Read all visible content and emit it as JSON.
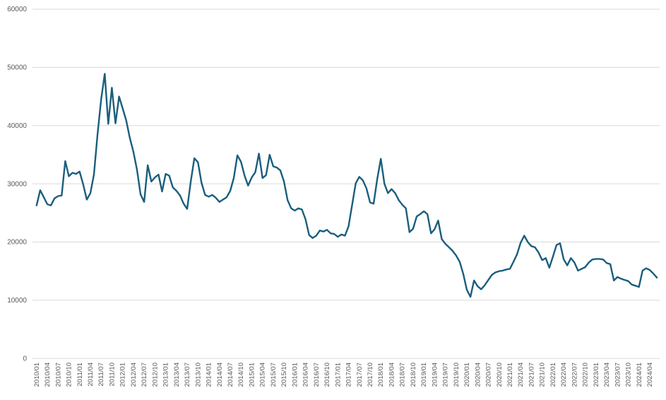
{
  "chart_data": {
    "type": "line",
    "title": "",
    "subtitle": "",
    "legend": "none",
    "grid": "horizontal",
    "x_unit": "month",
    "x_start": "2010/01",
    "x_end": "2024/06",
    "ylim": [
      0,
      60000
    ],
    "y_tick_step": 10000,
    "y_tick_labels": [
      "0",
      "10000",
      "20000",
      "30000",
      "40000",
      "50000",
      "60000"
    ],
    "x_tick_labels": [
      "2010/01",
      "2010/04",
      "2010/07",
      "2010/10",
      "2011/01",
      "2011/04",
      "2011/07",
      "2011/10",
      "2012/01",
      "2012/04",
      "2012/07",
      "2012/10",
      "2013/01",
      "2013/04",
      "2013/07",
      "2013/10",
      "2014/01",
      "2014/04",
      "2014/07",
      "2014/10",
      "2015/01",
      "2015/04",
      "2015/07",
      "2015/10",
      "2016/01",
      "2016/04",
      "2016/07",
      "2016/10",
      "2017/01",
      "2017/04",
      "2017/07",
      "2017/10",
      "2018/01",
      "2018/04",
      "2018/07",
      "2018/10",
      "2019/01",
      "2019/04",
      "2019/07",
      "2019/10",
      "2020/01",
      "2020/04",
      "2020/07",
      "2020/10",
      "2021/01",
      "2021/04",
      "2021/07",
      "2021/10",
      "2022/01",
      "2022/04",
      "2022/07",
      "2022/10",
      "2023/01",
      "2023/04",
      "2023/07",
      "2023/10",
      "2024/01",
      "2024/04"
    ],
    "months_per_x_tick": 3,
    "line_color": "#1a5e7d",
    "grid_color": "#d9d9d9",
    "label_color": "#595959",
    "background_color": "#ffffff",
    "values": [
      26300,
      28900,
      27700,
      26500,
      26300,
      27500,
      27900,
      28000,
      33900,
      31300,
      31900,
      31700,
      32100,
      29900,
      27300,
      28400,
      31600,
      38500,
      44500,
      48900,
      40300,
      46500,
      40400,
      45000,
      43000,
      40900,
      37900,
      35500,
      32400,
      28200,
      26900,
      33200,
      30400,
      31100,
      31600,
      28700,
      31700,
      31400,
      29400,
      28800,
      28000,
      26600,
      25700,
      30400,
      34400,
      33700,
      30200,
      28100,
      27800,
      28100,
      27600,
      26900,
      27300,
      27700,
      28800,
      31000,
      34900,
      33800,
      31400,
      29700,
      31100,
      32000,
      35200,
      31000,
      31500,
      35000,
      33000,
      32800,
      32300,
      30400,
      27200,
      25800,
      25400,
      25800,
      25600,
      23900,
      21200,
      20700,
      21100,
      22000,
      21800,
      22100,
      21500,
      21400,
      20900,
      21300,
      21100,
      22700,
      26400,
      30100,
      31200,
      30600,
      29200,
      26800,
      26600,
      30800,
      34300,
      30000,
      28400,
      29100,
      28400,
      27200,
      26400,
      25800,
      21700,
      22300,
      24400,
      24800,
      25300,
      24800,
      21500,
      22200,
      23700,
      20500,
      19700,
      19100,
      18500,
      17700,
      16600,
      14500,
      11800,
      10600,
      13400,
      12400,
      11900,
      12600,
      13500,
      14400,
      14800,
      15000,
      15100,
      15300,
      15400,
      16600,
      17900,
      19900,
      21100,
      20000,
      19300,
      19100,
      18200,
      16900,
      17250,
      15600,
      17500,
      19500,
      19800,
      17050,
      16000,
      17250,
      16500,
      15100,
      15400,
      15700,
      16500,
      17000,
      17100,
      17100,
      17000,
      16400,
      16200,
      13400,
      14000,
      13700,
      13500,
      13300,
      12700,
      12500,
      12300,
      15100,
      15500,
      15200,
      14600,
      13900
    ]
  }
}
